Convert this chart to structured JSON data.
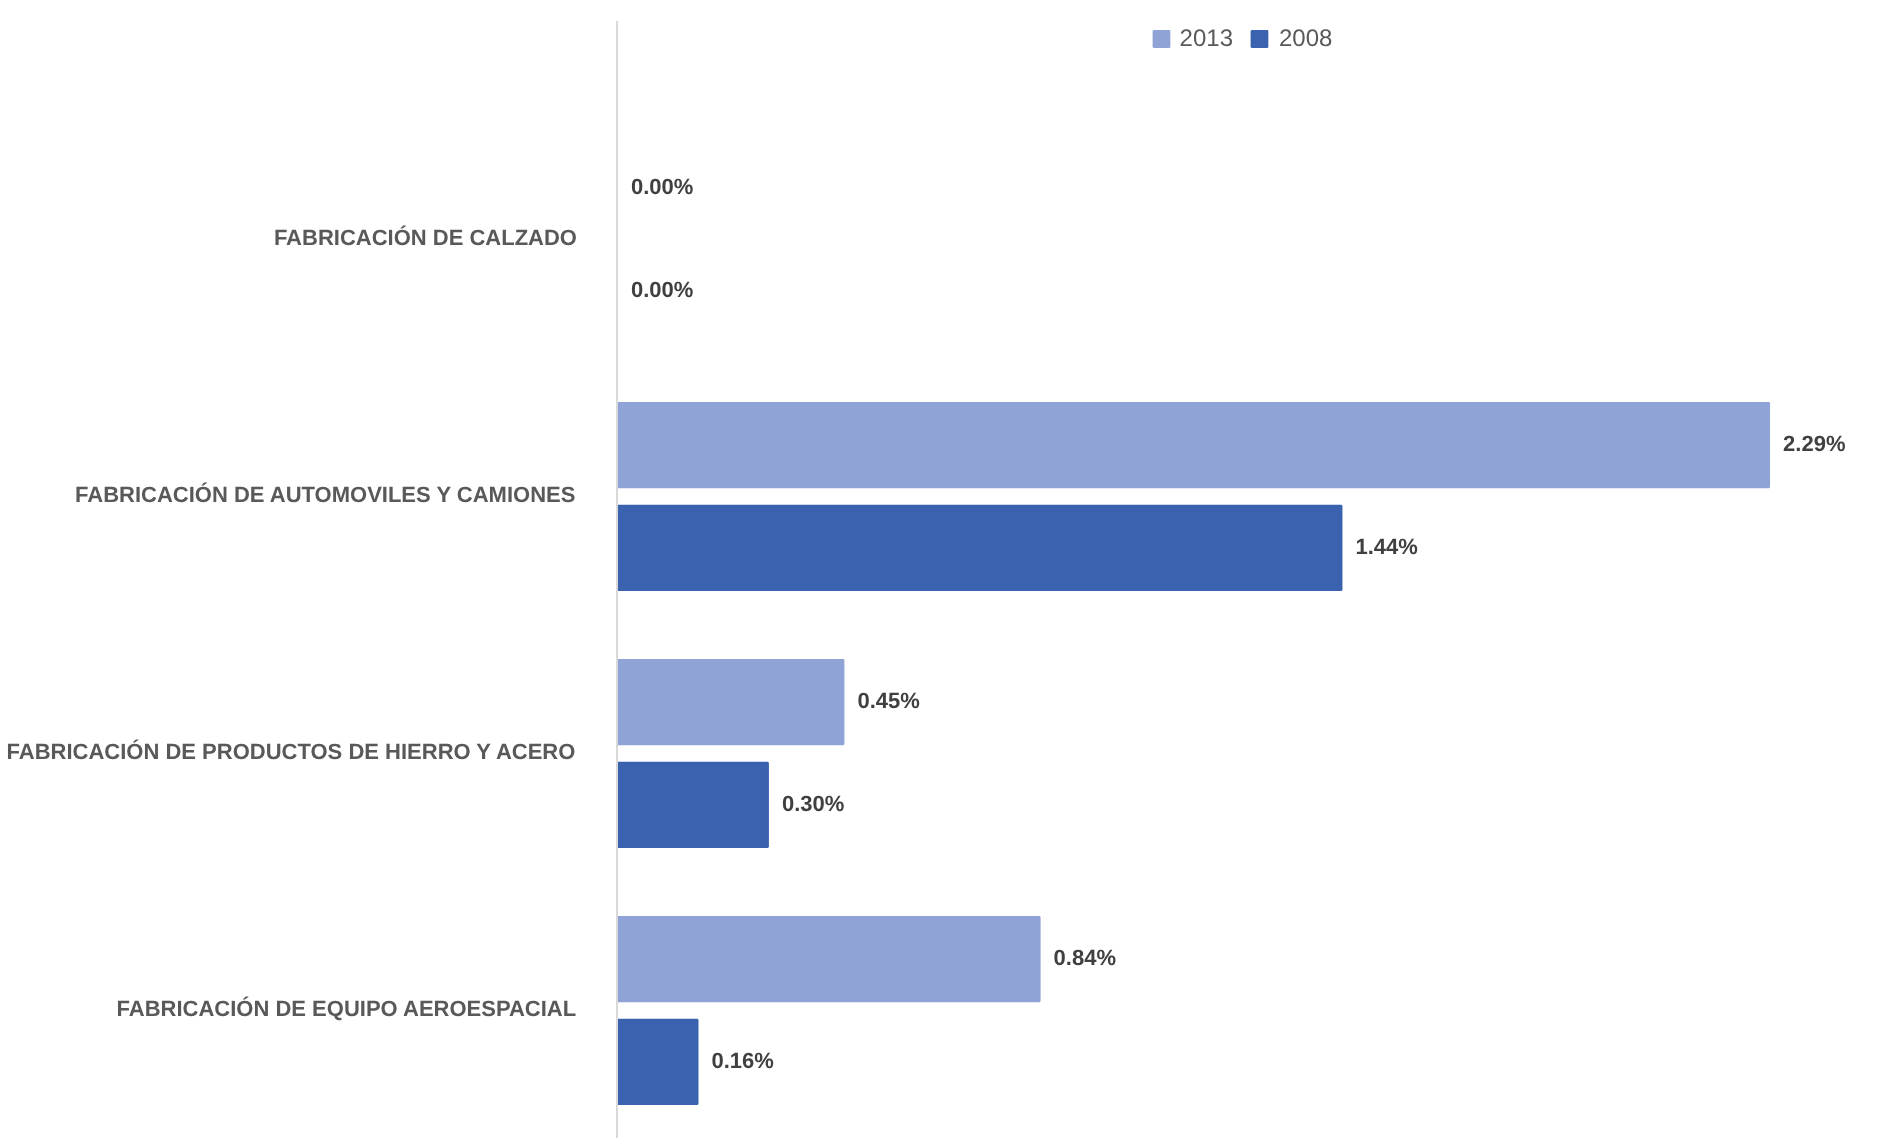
{
  "chart_data": {
    "type": "bar",
    "orientation": "horizontal",
    "categories": [
      "FABRICACIÓN DE CALZADO",
      "FABRICACIÓN DE AUTOMOVILES Y CAMIONES",
      "FABRICACIÓN DE PRODUCTOS DE HIERRO Y ACERO",
      "FABRICACIÓN DE EQUIPO AEROESPACIAL"
    ],
    "series": [
      {
        "name": "2013",
        "color": "#8fa3d6",
        "values": [
          0.0,
          2.29,
          0.45,
          0.84
        ],
        "value_labels": [
          "0.00%",
          "2.29%",
          "0.45%",
          "0.84%"
        ]
      },
      {
        "name": "2008",
        "color": "#3a62ae",
        "values": [
          0.0,
          1.44,
          0.3,
          0.16
        ],
        "value_labels": [
          "0.00%",
          "1.44%",
          "0.30%",
          "0.16%"
        ]
      }
    ],
    "legend": "top",
    "grid": false
  }
}
